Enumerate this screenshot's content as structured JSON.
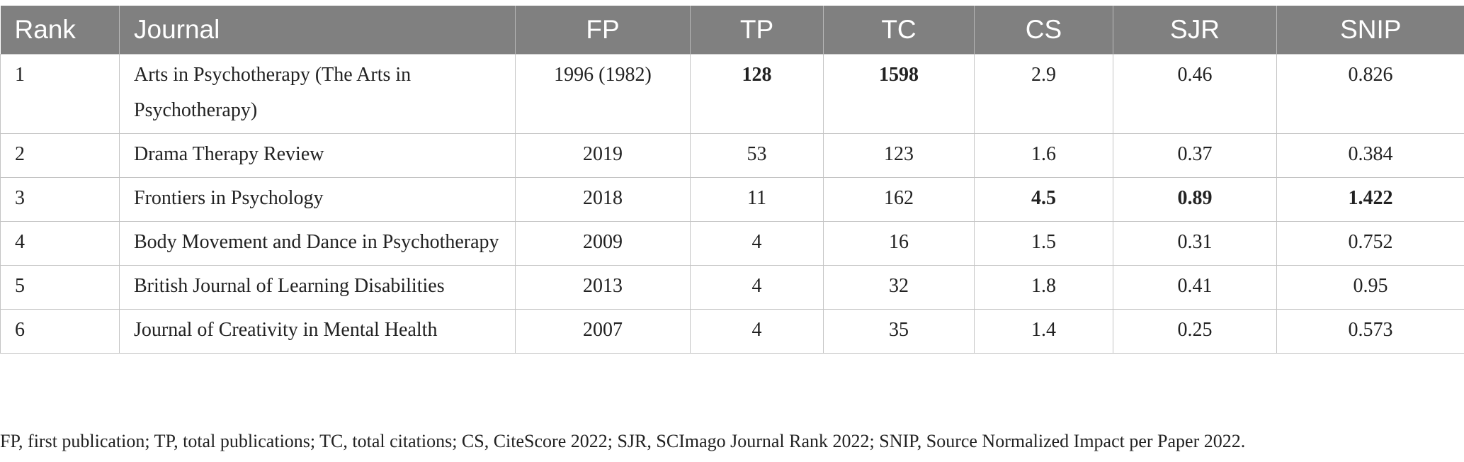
{
  "columns": [
    "Rank",
    "Journal",
    "FP",
    "TP",
    "TC",
    "CS",
    "SJR",
    "SNIP"
  ],
  "rows": [
    {
      "rank": "1",
      "journal": "Arts in Psychotherapy (The Arts in Psychotherapy)",
      "fp": "1996 (1982)",
      "tp": "128",
      "tc": "1598",
      "cs": "2.9",
      "sjr": "0.46",
      "snip": "0.826"
    },
    {
      "rank": "2",
      "journal": "Drama Therapy Review",
      "fp": "2019",
      "tp": "53",
      "tc": "123",
      "cs": "1.6",
      "sjr": "0.37",
      "snip": "0.384"
    },
    {
      "rank": "3",
      "journal": "Frontiers in Psychology",
      "fp": "2018",
      "tp": "11",
      "tc": "162",
      "cs": "4.5",
      "sjr": "0.89",
      "snip": "1.422"
    },
    {
      "rank": "4",
      "journal": "Body Movement and Dance in Psychotherapy",
      "fp": "2009",
      "tp": "4",
      "tc": "16",
      "cs": "1.5",
      "sjr": "0.31",
      "snip": "0.752"
    },
    {
      "rank": "5",
      "journal": "British Journal of Learning Disabilities",
      "fp": "2013",
      "tp": "4",
      "tc": "32",
      "cs": "1.8",
      "sjr": "0.41",
      "snip": "0.95"
    },
    {
      "rank": "6",
      "journal": "Journal of Creativity in Mental Health",
      "fp": "2007",
      "tp": "4",
      "tc": "35",
      "cs": "1.4",
      "sjr": "0.25",
      "snip": "0.573"
    }
  ],
  "footnote": "FP, first publication; TP, total publications; TC, total citations; CS, CiteScore 2022; SJR, SCImago Journal Rank 2022; SNIP, Source Normalized Impact per Paper 2022.",
  "colors": {
    "header_bg": "#808080",
    "header_text": "#ffffff",
    "grid": "#c4c4c4"
  }
}
